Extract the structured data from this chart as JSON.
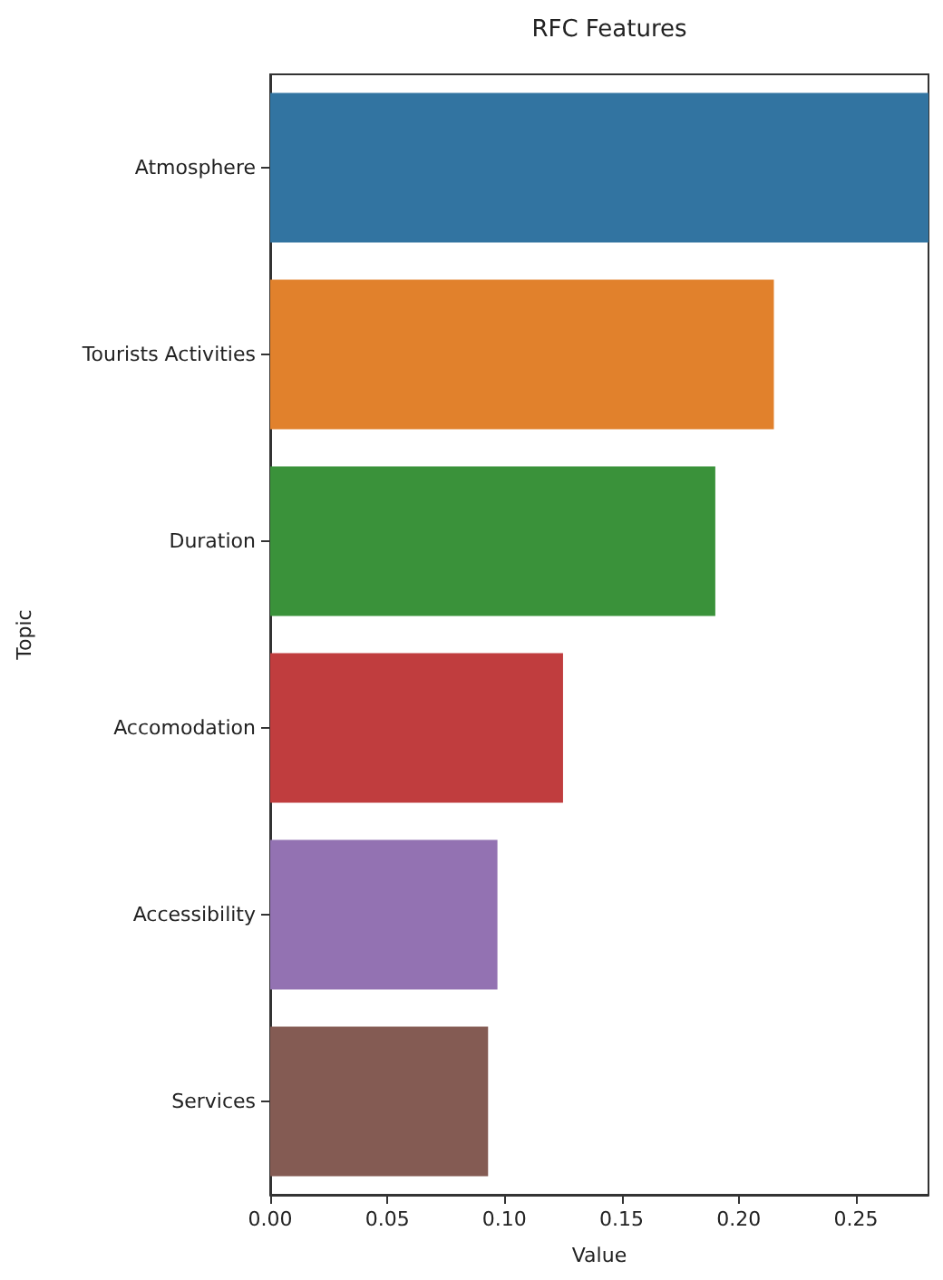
{
  "chart_data": {
    "type": "bar",
    "orientation": "horizontal",
    "title": "RFC Features",
    "xlabel": "Value",
    "ylabel": "Topic",
    "categories": [
      "Atmosphere",
      "Tourists Activities",
      "Duration",
      "Accomodation",
      "Accessibility",
      "Services"
    ],
    "values": [
      0.281,
      0.215,
      0.19,
      0.125,
      0.097,
      0.093
    ],
    "colors": [
      "#3274a1",
      "#e1812c",
      "#3a923a",
      "#c03d3e",
      "#9372b2",
      "#845b53"
    ],
    "xlim": [
      0,
      0.281
    ],
    "xticks": [
      {
        "value": 0,
        "label": "0.00"
      },
      {
        "value": 0.05,
        "label": "0.05"
      },
      {
        "value": 0.1,
        "label": "0.10"
      },
      {
        "value": 0.15,
        "label": "0.15"
      },
      {
        "value": 0.2,
        "label": "0.20"
      },
      {
        "value": 0.25,
        "label": "0.25"
      }
    ],
    "grid": false
  }
}
